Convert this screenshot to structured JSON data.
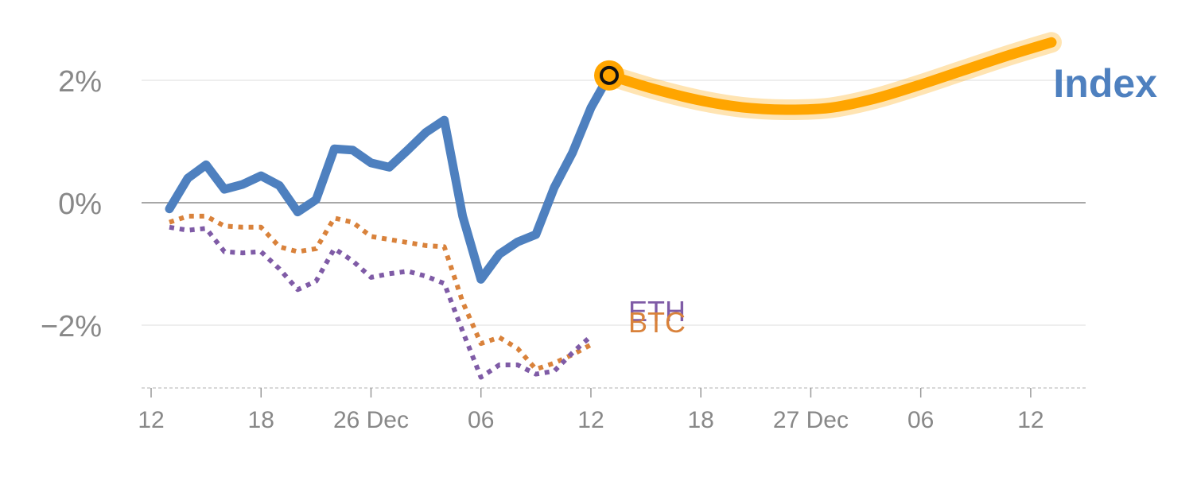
{
  "chart_data": {
    "type": "line",
    "title": "",
    "xlabel": "",
    "ylabel": "",
    "ylim": [
      -3,
      2.6
    ],
    "y_ticks": [
      {
        "value": 2,
        "label": "2%"
      },
      {
        "value": 0,
        "label": "0%"
      },
      {
        "value": -2,
        "label": "−2%"
      }
    ],
    "x_ticks": [
      "12",
      "18",
      "26 Dec",
      "06",
      "12",
      "18",
      "27 Dec",
      "06",
      "12"
    ],
    "grid": "horizontal",
    "zero_line": true,
    "series": [
      {
        "name": "Index",
        "color": "#4e80bf",
        "style": "solid",
        "values": [
          -0.1,
          0.4,
          0.62,
          0.22,
          0.3,
          0.44,
          0.28,
          -0.15,
          0.05,
          0.88,
          0.86,
          0.65,
          0.58,
          0.86,
          1.15,
          1.35,
          -0.22,
          -1.25,
          -0.84,
          -0.64,
          -0.52,
          0.25,
          0.82,
          1.55,
          2.08
        ]
      },
      {
        "name": "BTC",
        "color": "#d9823b",
        "style": "dotted",
        "values": [
          -0.32,
          -0.22,
          -0.22,
          -0.38,
          -0.4,
          -0.4,
          -0.72,
          -0.8,
          -0.75,
          -0.25,
          -0.32,
          -0.55,
          -0.6,
          -0.65,
          -0.7,
          -0.72,
          -1.62,
          -2.3,
          -2.2,
          -2.38,
          -2.72,
          -2.62,
          -2.48,
          -2.32
        ]
      },
      {
        "name": "ETH",
        "color": "#7f5ba6",
        "style": "dotted",
        "values": [
          -0.4,
          -0.45,
          -0.42,
          -0.8,
          -0.82,
          -0.8,
          -1.08,
          -1.42,
          -1.28,
          -0.75,
          -0.95,
          -1.22,
          -1.16,
          -1.12,
          -1.2,
          -1.32,
          -2.1,
          -2.85,
          -2.65,
          -2.65,
          -2.8,
          -2.75,
          -2.45,
          -2.18
        ]
      }
    ],
    "forecast": {
      "name": "Index",
      "color": "#ffa500",
      "values": [
        2.08,
        1.86,
        1.68,
        1.56,
        1.52,
        1.55,
        1.7,
        1.92,
        2.16,
        2.4,
        2.62
      ]
    }
  }
}
